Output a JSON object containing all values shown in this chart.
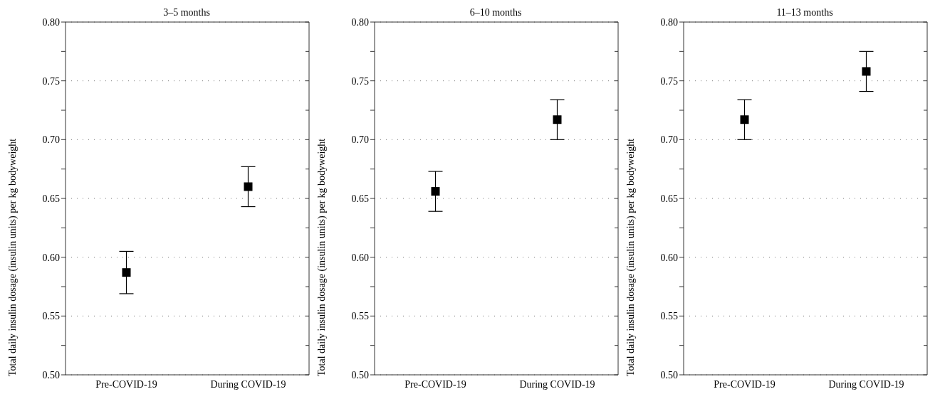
{
  "chart_data": [
    {
      "type": "scatter",
      "title": "3–5 months",
      "ylabel": "Total daily insulin dosage (insulin units) per  kg bodyweight",
      "categories": [
        "Pre-COVID-19",
        "During COVID-19"
      ],
      "series": [
        {
          "color": "#000000",
          "values": [
            0.587,
            0.66
          ],
          "errors": [
            0.018,
            0.017
          ]
        }
      ],
      "ylim": [
        0.5,
        0.8
      ],
      "yticks": [
        {
          "value": 0.5,
          "label": "0.50"
        },
        {
          "value": 0.525,
          "label": null
        },
        {
          "value": 0.55,
          "label": "0.55"
        },
        {
          "value": 0.575,
          "label": null
        },
        {
          "value": 0.6,
          "label": "0.60"
        },
        {
          "value": 0.625,
          "label": null
        },
        {
          "value": 0.65,
          "label": "0.65"
        },
        {
          "value": 0.675,
          "label": null
        },
        {
          "value": 0.7,
          "label": "0.70"
        },
        {
          "value": 0.725,
          "label": null
        },
        {
          "value": 0.75,
          "label": "0.75"
        },
        {
          "value": 0.775,
          "label": null
        },
        {
          "value": 0.8,
          "label": "0.80"
        }
      ],
      "grid": "y",
      "marker": "square"
    },
    {
      "type": "scatter",
      "title": "6–10 months",
      "ylabel": "Total daily insulin dosage (insulin units) per  kg bodyweight",
      "categories": [
        "Pre-COVID-19",
        "During COVID-19"
      ],
      "series": [
        {
          "color": "#000000",
          "values": [
            0.656,
            0.717
          ],
          "errors": [
            0.017,
            0.017
          ]
        }
      ],
      "ylim": [
        0.5,
        0.8
      ],
      "yticks": [
        {
          "value": 0.5,
          "label": "0.50"
        },
        {
          "value": 0.525,
          "label": null
        },
        {
          "value": 0.55,
          "label": "0.55"
        },
        {
          "value": 0.575,
          "label": null
        },
        {
          "value": 0.6,
          "label": "0.60"
        },
        {
          "value": 0.625,
          "label": null
        },
        {
          "value": 0.65,
          "label": "0.65"
        },
        {
          "value": 0.675,
          "label": null
        },
        {
          "value": 0.7,
          "label": "0.70"
        },
        {
          "value": 0.725,
          "label": null
        },
        {
          "value": 0.75,
          "label": "0.75"
        },
        {
          "value": 0.775,
          "label": null
        },
        {
          "value": 0.8,
          "label": "0.80"
        }
      ],
      "grid": "y",
      "marker": "square"
    },
    {
      "type": "scatter",
      "title": "11–13 months",
      "ylabel": "Total daily insulin dosage (insulin units) per  kg bodyweight",
      "categories": [
        "Pre-COVID-19",
        "During COVID-19"
      ],
      "series": [
        {
          "color": "#000000",
          "values": [
            0.717,
            0.758
          ],
          "errors": [
            0.017,
            0.017
          ]
        }
      ],
      "ylim": [
        0.5,
        0.8
      ],
      "yticks": [
        {
          "value": 0.5,
          "label": "0.50"
        },
        {
          "value": 0.525,
          "label": null
        },
        {
          "value": 0.55,
          "label": "0.55"
        },
        {
          "value": 0.575,
          "label": null
        },
        {
          "value": 0.6,
          "label": "0.60"
        },
        {
          "value": 0.625,
          "label": null
        },
        {
          "value": 0.65,
          "label": "0.65"
        },
        {
          "value": 0.675,
          "label": null
        },
        {
          "value": 0.7,
          "label": "0.70"
        },
        {
          "value": 0.725,
          "label": null
        },
        {
          "value": 0.75,
          "label": "0.75"
        },
        {
          "value": 0.775,
          "label": null
        },
        {
          "value": 0.8,
          "label": "0.80"
        }
      ],
      "grid": "y",
      "marker": "square"
    }
  ]
}
